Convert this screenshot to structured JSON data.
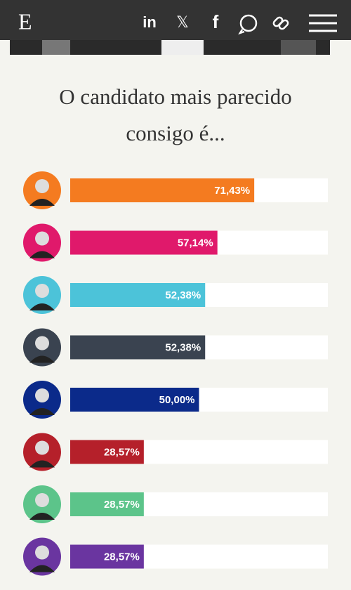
{
  "header": {
    "logo": "E",
    "icons": [
      "in",
      "𝕏",
      "f"
    ]
  },
  "chart_data": {
    "type": "bar",
    "orientation": "horizontal",
    "title": "O candidato mais parecido consigo é...",
    "values": [
      71.43,
      57.14,
      52.38,
      52.38,
      50.0,
      28.57,
      28.57,
      28.57
    ],
    "value_labels": [
      "71,43%",
      "57,14%",
      "52,38%",
      "52,38%",
      "50,00%",
      "28,57%",
      "28,57%",
      "28,57%"
    ],
    "colors": [
      "#f47b20",
      "#e0196b",
      "#4cc3d9",
      "#3a4350",
      "#0b2a8a",
      "#b5202a",
      "#5cc48a",
      "#6a35a0"
    ],
    "xlim": [
      0,
      100
    ]
  }
}
